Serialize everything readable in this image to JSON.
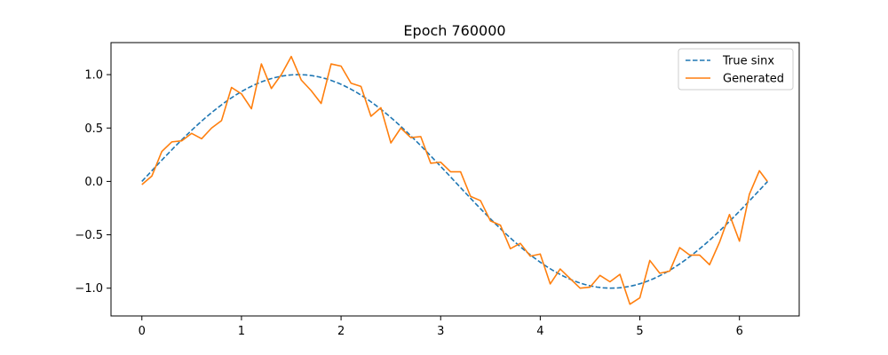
{
  "chart_data": {
    "type": "line",
    "title": "Epoch 760000",
    "xlabel": "",
    "ylabel": "",
    "xlim": [
      -0.31,
      6.6
    ],
    "ylim": [
      -1.26,
      1.3
    ],
    "x_ticks": [
      0,
      1,
      2,
      3,
      4,
      5,
      6
    ],
    "x_tick_labels": [
      "0",
      "1",
      "2",
      "3",
      "4",
      "5",
      "6"
    ],
    "y_ticks": [
      -1.0,
      -0.5,
      0.0,
      0.5,
      1.0
    ],
    "y_tick_labels": [
      "−1.0",
      "−0.5",
      "0.0",
      "0.5",
      "1.0"
    ],
    "grid": false,
    "legend_position": "top-right",
    "series": [
      {
        "name": "True sinx",
        "style": "dashed",
        "color": "#1f77b4",
        "function": "sin",
        "x_range": [
          0,
          6.283
        ],
        "samples": 100
      },
      {
        "name": "Generated",
        "style": "solid",
        "color": "#ff7f0e",
        "x": [
          0.0,
          0.1,
          0.2,
          0.3,
          0.4,
          0.5,
          0.6,
          0.7,
          0.8,
          0.9,
          1.0,
          1.1,
          1.2,
          1.3,
          1.4,
          1.5,
          1.6,
          1.7,
          1.8,
          1.9,
          2.0,
          2.1,
          2.2,
          2.3,
          2.4,
          2.5,
          2.6,
          2.7,
          2.8,
          2.9,
          3.0,
          3.1,
          3.2,
          3.3,
          3.4,
          3.5,
          3.6,
          3.7,
          3.8,
          3.9,
          4.0,
          4.1,
          4.2,
          4.3,
          4.4,
          4.5,
          4.6,
          4.7,
          4.8,
          4.9,
          5.0,
          5.1,
          5.2,
          5.3,
          5.4,
          5.5,
          5.6,
          5.7,
          5.8,
          5.9,
          6.0,
          6.1,
          6.2,
          6.28
        ],
        "values": [
          -0.03,
          0.05,
          0.28,
          0.37,
          0.38,
          0.45,
          0.4,
          0.5,
          0.57,
          0.88,
          0.82,
          0.68,
          1.1,
          0.87,
          1.0,
          1.17,
          0.95,
          0.85,
          0.73,
          1.1,
          1.08,
          0.92,
          0.89,
          0.61,
          0.69,
          0.36,
          0.5,
          0.41,
          0.42,
          0.17,
          0.18,
          0.09,
          0.09,
          -0.14,
          -0.18,
          -0.37,
          -0.41,
          -0.63,
          -0.58,
          -0.7,
          -0.68,
          -0.96,
          -0.82,
          -0.91,
          -1.0,
          -0.99,
          -0.88,
          -0.94,
          -0.87,
          -1.15,
          -1.09,
          -0.74,
          -0.86,
          -0.84,
          -0.62,
          -0.69,
          -0.69,
          -0.78,
          -0.57,
          -0.31,
          -0.56,
          -0.12,
          0.1,
          0.0
        ]
      }
    ]
  }
}
